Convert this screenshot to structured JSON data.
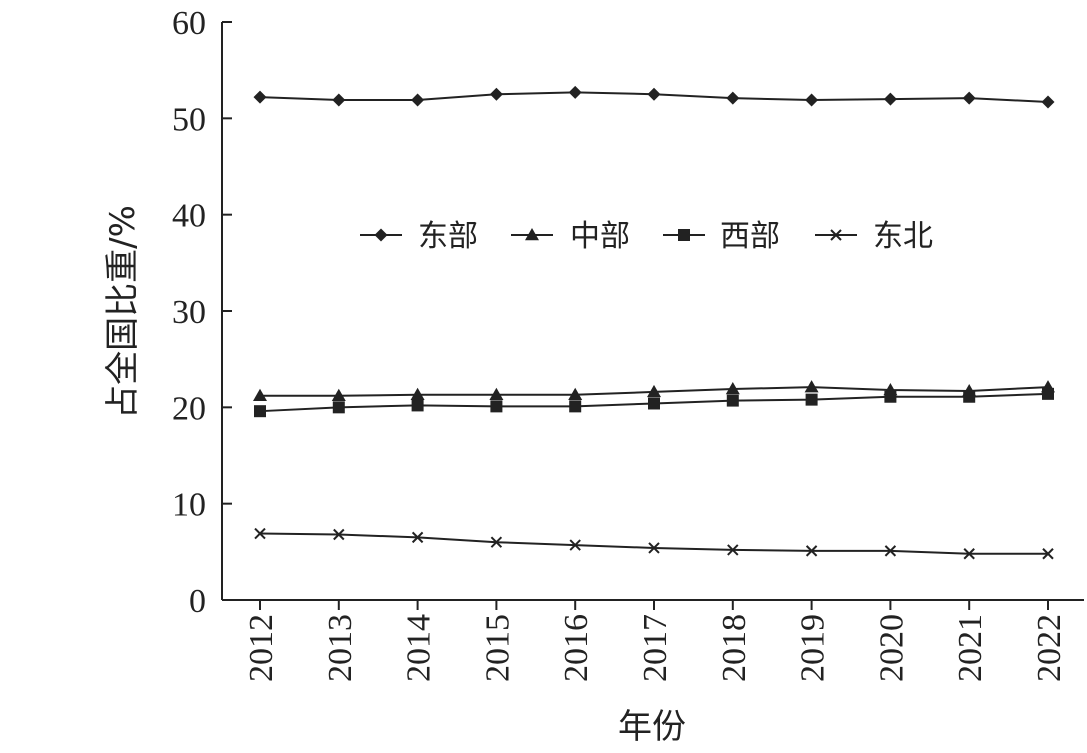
{
  "chart_data": {
    "type": "line",
    "title": "",
    "xlabel": "年份",
    "ylabel": "占全国比重/%",
    "ylim": [
      0,
      60
    ],
    "yticks": [
      "0",
      "10",
      "20",
      "30",
      "40",
      "50",
      "60"
    ],
    "categories": [
      "2012",
      "2013",
      "2014",
      "2015",
      "2016",
      "2017",
      "2018",
      "2019",
      "2020",
      "2021",
      "2022"
    ],
    "grid": false,
    "legend_position": "top-center",
    "series": [
      {
        "name": "东部",
        "marker": "diamond",
        "color": "#222222",
        "values": [
          52.2,
          51.9,
          51.9,
          52.5,
          52.7,
          52.5,
          52.1,
          51.9,
          52.0,
          52.1,
          51.7
        ]
      },
      {
        "name": "中部",
        "marker": "triangle",
        "color": "#222222",
        "values": [
          21.2,
          21.2,
          21.3,
          21.3,
          21.3,
          21.6,
          21.9,
          22.1,
          21.8,
          21.7,
          22.1
        ]
      },
      {
        "name": "西部",
        "marker": "square",
        "color": "#222222",
        "values": [
          19.6,
          20.0,
          20.2,
          20.1,
          20.1,
          20.4,
          20.7,
          20.8,
          21.1,
          21.1,
          21.4
        ]
      },
      {
        "name": "东北",
        "marker": "x",
        "color": "#222222",
        "values": [
          6.9,
          6.8,
          6.5,
          6.0,
          5.7,
          5.4,
          5.2,
          5.1,
          5.1,
          4.8,
          4.8
        ]
      }
    ]
  }
}
